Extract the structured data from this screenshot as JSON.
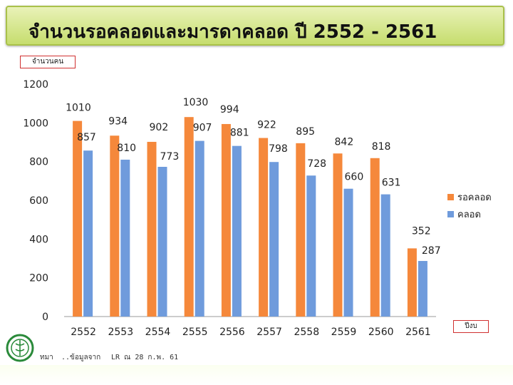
{
  "title": "จำนวนรอคลอดและมารดาคลอด ปี 2552 - 2561",
  "unit_label": "จำนวนคน",
  "year_label": "ปีงบ",
  "footer": {
    "org": "ทมา",
    "source": "..ข้อมูลจาก",
    "report": "LR ณ 28 ก.พ. 61"
  },
  "colors": {
    "series1": "#f5883b",
    "series2": "#6f9bdc",
    "banner": "#c6dd6e"
  },
  "chart_data": {
    "type": "bar",
    "categories": [
      "2552",
      "2553",
      "2554",
      "2555",
      "2556",
      "2557",
      "2558",
      "2559",
      "2560",
      "2561"
    ],
    "series": [
      {
        "name": "รอคลอด",
        "values": [
          1010,
          934,
          902,
          1030,
          994,
          922,
          895,
          842,
          818,
          352
        ]
      },
      {
        "name": "คลอด",
        "values": [
          857,
          810,
          773,
          907,
          881,
          798,
          728,
          660,
          631,
          287
        ]
      }
    ],
    "ylim": [
      0,
      1200
    ],
    "yticks": [
      0,
      200,
      400,
      600,
      800,
      1000,
      1200
    ],
    "grid": false,
    "legend": "right",
    "data_labels": true
  }
}
